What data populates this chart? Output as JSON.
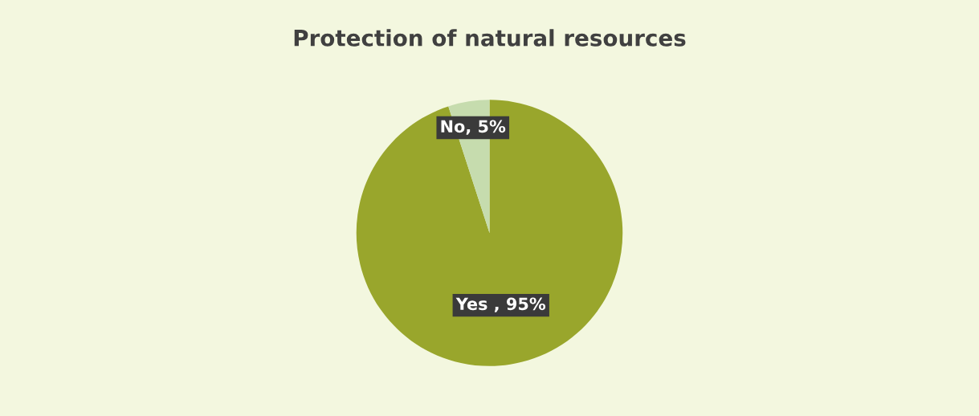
{
  "chart_data": {
    "type": "pie",
    "title": "Protection of natural resources",
    "categories": [
      "Yes",
      "No"
    ],
    "values": [
      95,
      5
    ],
    "colors": [
      "#99a62c",
      "#c6dcae"
    ],
    "value_labels": [
      " , 95%",
      ", 5%"
    ],
    "legend": false
  }
}
